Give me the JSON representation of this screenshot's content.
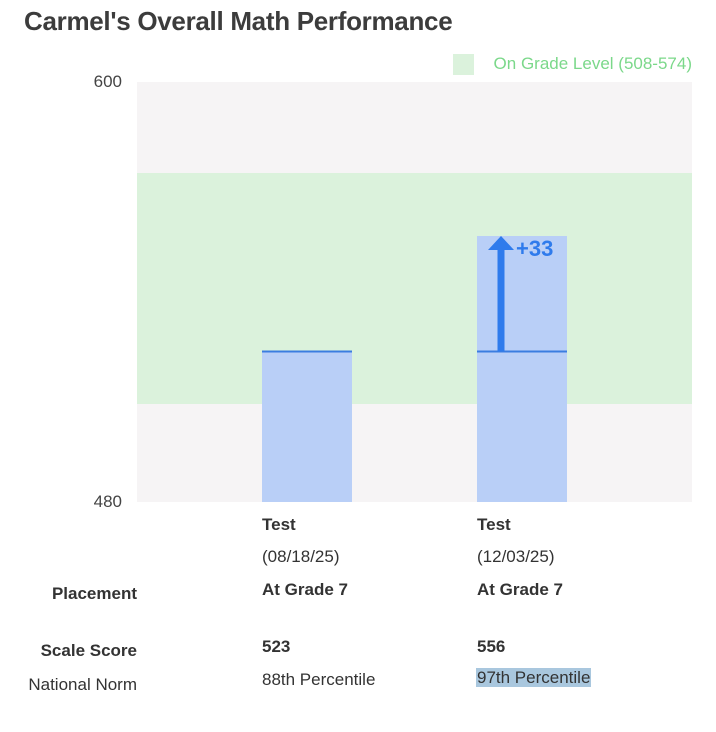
{
  "title": "Carmel's Overall Math Performance",
  "colors": {
    "plot_background": "#f6f4f5",
    "band": "#dbf2dc",
    "band_label": "#7bd88a",
    "bar": "#b9cff7",
    "bar_line": "#3b7de0",
    "arrow": "#2f7bec",
    "highlight": "#a9c7de"
  },
  "chart_data": {
    "type": "bar",
    "ylim": [
      480,
      600
    ],
    "y_ticks": [
      "600",
      "480"
    ],
    "band": {
      "label": "On Grade Level (508-574)",
      "low": 508,
      "high": 574
    },
    "categories": [
      "Test (08/18/25)",
      "Test (12/03/25)"
    ],
    "values": [
      523,
      556
    ],
    "previous_marker": 523,
    "delta": {
      "label": "+33",
      "from": 523,
      "to": 556
    }
  },
  "columns": [
    {
      "test_label": "Test",
      "test_date": "(08/18/25)",
      "placement": "At Grade 7",
      "scale_score": "523",
      "national_norm": "88th Percentile"
    },
    {
      "test_label": "Test",
      "test_date": "(12/03/25)",
      "placement": "At Grade 7",
      "scale_score": "556",
      "national_norm": "97th Percentile"
    }
  ],
  "row_labels": {
    "placement": "Placement",
    "scale_score": "Scale Score",
    "national_norm": "National Norm"
  }
}
